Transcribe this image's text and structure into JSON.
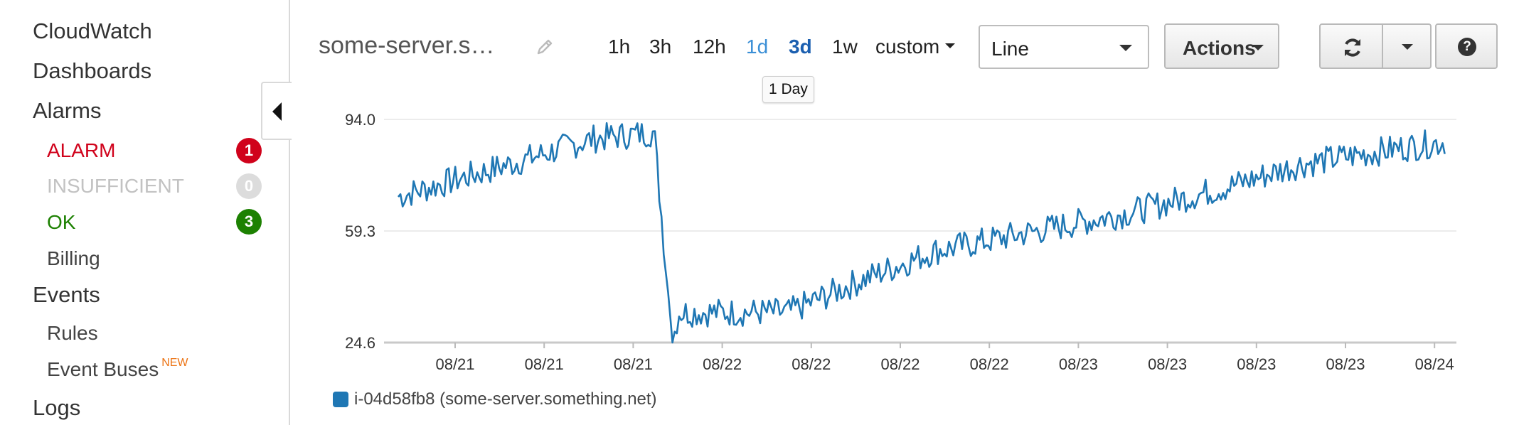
{
  "sidebar": {
    "items": [
      {
        "label": "CloudWatch"
      },
      {
        "label": "Dashboards"
      },
      {
        "label": "Alarms"
      },
      {
        "label": "Events"
      },
      {
        "label": "Logs"
      }
    ],
    "alarm_states": [
      {
        "label": "ALARM",
        "count": "1",
        "color": "#d0021b"
      },
      {
        "label": "INSUFFICIENT",
        "count": "0",
        "color": "#c2c2c2"
      },
      {
        "label": "OK",
        "count": "3",
        "color": "#1d8102"
      }
    ],
    "billing": "Billing",
    "events_sub": [
      {
        "label": "Rules"
      },
      {
        "label": "Event Buses",
        "badge": "NEW"
      }
    ]
  },
  "header": {
    "dashboard_title": "some-server.s…",
    "time_ranges": [
      "1h",
      "3h",
      "12h",
      "1d",
      "3d",
      "1w"
    ],
    "custom_label": "custom",
    "selected_range": "3d",
    "hovered_range": "1d",
    "tooltip": "1 Day",
    "graph_type": "Line",
    "actions_label": "Actions",
    "help_label": "?"
  },
  "chart_data": {
    "type": "line",
    "x_tick_labels": [
      "08/21",
      "08/21",
      "08/21",
      "08/22",
      "08/22",
      "08/22",
      "08/22",
      "08/23",
      "08/23",
      "08/23",
      "08/23",
      "08/24"
    ],
    "y_tick_labels": [
      "94.0",
      "59.3",
      "24.6"
    ],
    "ylim": [
      24.6,
      94.0
    ],
    "grid": true,
    "series": [
      {
        "name": "i-04d58fb8 (some-server.something.net)",
        "color": "#1f77b4",
        "approx_trend_points": [
          {
            "x": "08/20 18:00",
            "y": 70
          },
          {
            "x": "08/21 04:00",
            "y": 81
          },
          {
            "x": "08/21 10:00",
            "y": 88
          },
          {
            "x": "08/21 15:00",
            "y": 90
          },
          {
            "x": "08/21 16:30",
            "y": 24.6
          },
          {
            "x": "08/21 17:00",
            "y": 34
          },
          {
            "x": "08/22 02:00",
            "y": 34
          },
          {
            "x": "08/22 08:00",
            "y": 44
          },
          {
            "x": "08/22 14:00",
            "y": 53
          },
          {
            "x": "08/22 22:00",
            "y": 59
          },
          {
            "x": "08/23 06:00",
            "y": 65
          },
          {
            "x": "08/23 14:00",
            "y": 73
          },
          {
            "x": "08/23 20:00",
            "y": 80
          },
          {
            "x": "08/24 04:00",
            "y": 85
          },
          {
            "x": "08/24 08:00",
            "y": 87
          }
        ]
      }
    ],
    "legend_position": "bottom-left"
  }
}
